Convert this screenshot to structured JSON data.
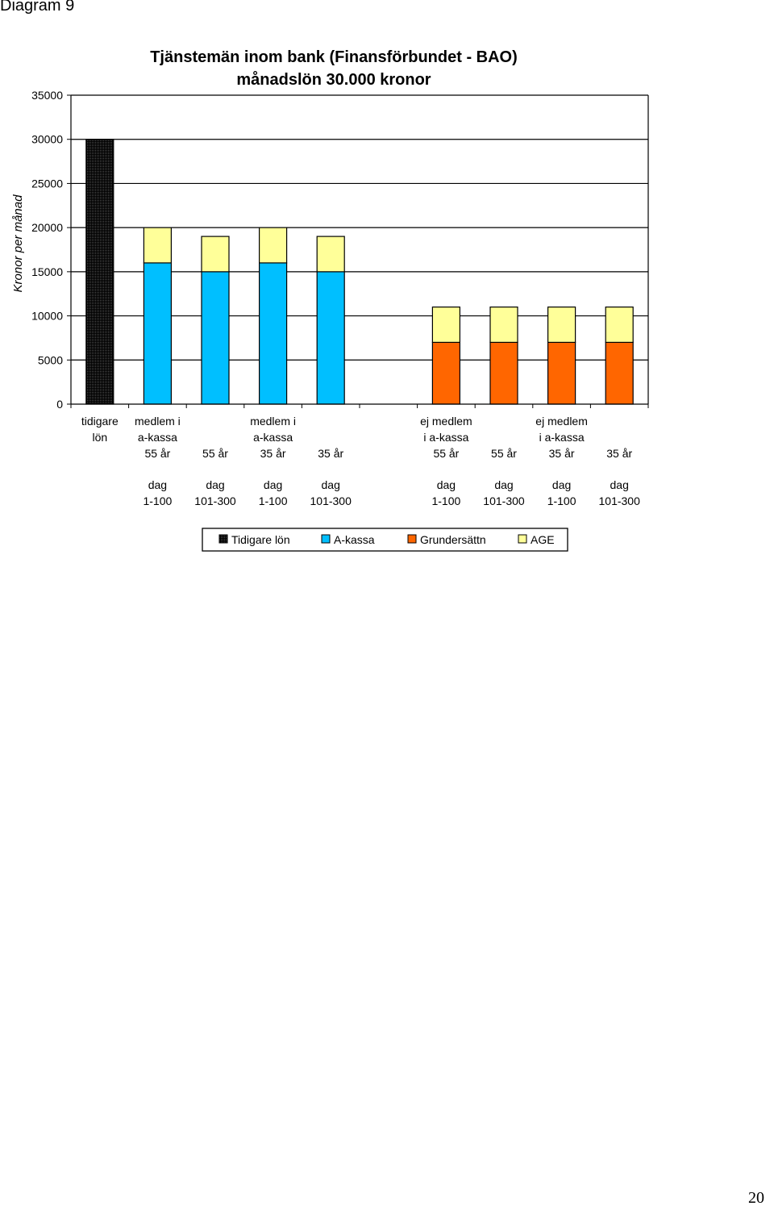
{
  "page": {
    "diagram_label": "Diagram 9",
    "page_number": "20"
  },
  "chart_data": {
    "type": "bar",
    "stacked": true,
    "title": [
      "Tjänstemän inom bank (Finansförbundet - BAO)",
      "månadslön 30.000 kronor"
    ],
    "ylabel": "Kronor per månad",
    "xlabel": "",
    "ylim": [
      0,
      35000
    ],
    "yticks": [
      0,
      5000,
      10000,
      15000,
      20000,
      25000,
      30000,
      35000
    ],
    "grid": true,
    "legend_position": "bottom",
    "categories": [
      [
        "tidigare",
        "lön"
      ],
      [
        "medlem i",
        "a-kassa",
        "55 år",
        "",
        "dag",
        "1-100"
      ],
      [
        "",
        "",
        "55 år",
        "",
        "dag",
        "101-300"
      ],
      [
        "medlem i",
        "a-kassa",
        "35 år",
        "",
        "dag",
        "1-100"
      ],
      [
        "",
        "",
        "35 år",
        "",
        "dag",
        "101-300"
      ],
      [
        "",
        "",
        "",
        "",
        "",
        ""
      ],
      [
        "ej medlem",
        "i a-kassa",
        "55 år",
        "",
        "dag",
        "1-100"
      ],
      [
        "",
        "",
        "55 år",
        "",
        "dag",
        "101-300"
      ],
      [
        "ej medlem",
        "i a-kassa",
        "35 år",
        "",
        "dag",
        "1-100"
      ],
      [
        "",
        "",
        "35 år",
        "",
        "dag",
        "101-300"
      ]
    ],
    "series": [
      {
        "name": "Tidigare lön",
        "color": "#000000",
        "values": [
          30000,
          0,
          0,
          0,
          0,
          0,
          0,
          0,
          0,
          0
        ]
      },
      {
        "name": "A-kassa",
        "color": "#00BFFF",
        "values": [
          0,
          16000,
          15000,
          16000,
          15000,
          0,
          0,
          0,
          0,
          0
        ]
      },
      {
        "name": "Grundersättn",
        "color": "#FF6600",
        "values": [
          0,
          0,
          0,
          0,
          0,
          0,
          7000,
          7000,
          7000,
          7000
        ]
      },
      {
        "name": "AGE",
        "color": "#FFFF99",
        "values": [
          0,
          4000,
          4000,
          4000,
          4000,
          0,
          4000,
          4000,
          4000,
          4000
        ]
      }
    ]
  }
}
